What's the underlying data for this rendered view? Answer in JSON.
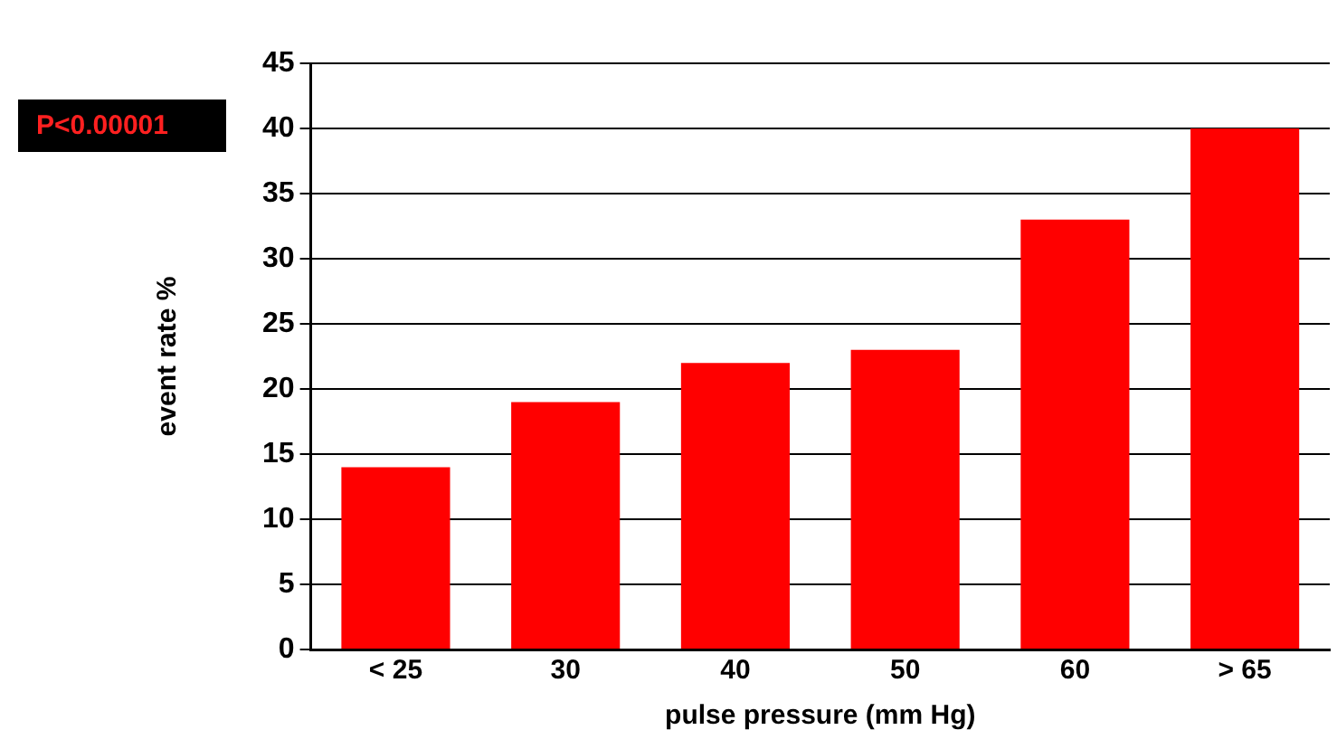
{
  "chart_data": {
    "type": "bar",
    "xlabel": "pulse pressure (mm Hg)",
    "ylabel": "event rate %",
    "categories": [
      "< 25",
      "30",
      "40",
      "50",
      "60",
      "> 65"
    ],
    "values": [
      14,
      19,
      22,
      23,
      33,
      40
    ],
    "color": "#ff0000",
    "ylim": [
      0,
      45
    ],
    "yticks": [
      0,
      5,
      10,
      15,
      20,
      25,
      30,
      35,
      40,
      45
    ],
    "grid": "y",
    "legend": false,
    "annotations": [
      "P<0.00001"
    ]
  }
}
